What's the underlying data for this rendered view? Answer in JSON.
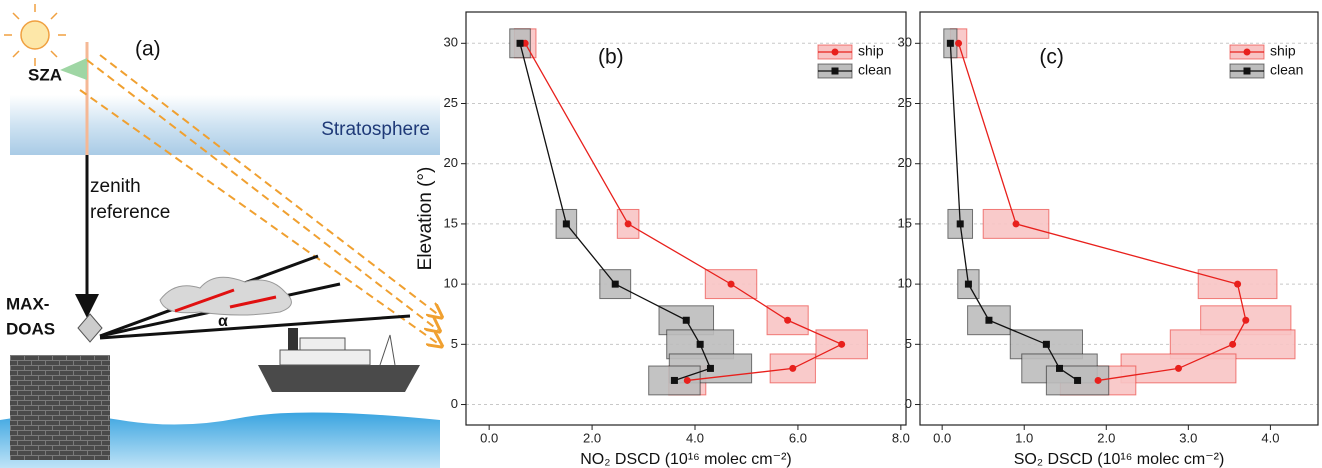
{
  "diagram": {
    "panel_label": "(a)",
    "sza": "SZA",
    "stratosphere": "Stratosphere",
    "zenith_reference": [
      "zenith",
      "reference"
    ],
    "instrument": [
      "MAX-",
      "DOAS"
    ],
    "angle": "α"
  },
  "chart_data": [
    {
      "type": "line",
      "annotation": "(b)",
      "xlabel": "NO₂ DSCD (10¹⁶ molec cm⁻²)",
      "ylabel": "Elevation (°)",
      "xlim": [
        -0.45,
        8.1
      ],
      "ylim": [
        -1.7,
        32.6
      ],
      "xticks": [
        {
          "value": 0,
          "label": "0.0"
        },
        {
          "value": 2,
          "label": "2.0"
        },
        {
          "value": 4,
          "label": "4.0"
        },
        {
          "value": 6,
          "label": "6.0"
        },
        {
          "value": 8,
          "label": "8.0"
        }
      ],
      "yticks": [
        0,
        5,
        10,
        15,
        20,
        25,
        30
      ],
      "grid": "y",
      "legend": "upper right",
      "y_error": 1.2,
      "series": [
        {
          "name": "ship",
          "color": "#e8201c",
          "box_color": "#f8c4c4",
          "marker": "circle",
          "y": [
            30,
            15,
            10,
            7,
            5,
            3,
            2
          ],
          "x": [
            0.7,
            2.7,
            4.7,
            5.8,
            6.85,
            5.9,
            3.85
          ],
          "x_errors": [
            0.21,
            0.21,
            0.5,
            0.4,
            0.5,
            0.44,
            0.36
          ]
        },
        {
          "name": "clean",
          "color": "#111111",
          "box_color": "#bdbdbd",
          "marker": "square",
          "y": [
            30,
            15,
            10,
            7,
            5,
            3,
            2
          ],
          "x": [
            0.6,
            1.5,
            2.45,
            3.83,
            4.1,
            4.3,
            3.6
          ],
          "x_errors": [
            0.2,
            0.2,
            0.3,
            0.53,
            0.65,
            0.8,
            0.5
          ]
        }
      ]
    },
    {
      "type": "line",
      "annotation": "(c)",
      "xlabel": "SO₂ DSCD (10¹⁶ molec cm⁻²)",
      "xlim": [
        -0.27,
        4.58
      ],
      "ylim": [
        -1.7,
        32.6
      ],
      "xticks": [
        {
          "value": 0,
          "label": "0.0"
        },
        {
          "value": 1,
          "label": "1.0"
        },
        {
          "value": 2,
          "label": "2.0"
        },
        {
          "value": 3,
          "label": "3.0"
        },
        {
          "value": 4,
          "label": "4.0"
        }
      ],
      "yticks": [
        0,
        5,
        10,
        15,
        20,
        25,
        30
      ],
      "grid": "y",
      "legend": "upper right",
      "y_error": 1.2,
      "series": [
        {
          "name": "ship",
          "color": "#e8201c",
          "box_color": "#f8c4c4",
          "marker": "circle",
          "y": [
            30,
            15,
            10,
            7,
            5,
            3,
            2
          ],
          "x": [
            0.2,
            0.9,
            3.6,
            3.7,
            3.54,
            2.88,
            1.9
          ],
          "x_errors": [
            0.1,
            0.4,
            0.48,
            0.55,
            0.76,
            0.7,
            0.46
          ]
        },
        {
          "name": "clean",
          "color": "#111111",
          "box_color": "#bdbdbd",
          "marker": "square",
          "y": [
            30,
            15,
            10,
            7,
            5,
            3,
            2
          ],
          "x": [
            0.1,
            0.22,
            0.32,
            0.57,
            1.27,
            1.43,
            1.65
          ],
          "x_errors": [
            0.08,
            0.15,
            0.13,
            0.26,
            0.44,
            0.46,
            0.38
          ]
        }
      ]
    }
  ]
}
